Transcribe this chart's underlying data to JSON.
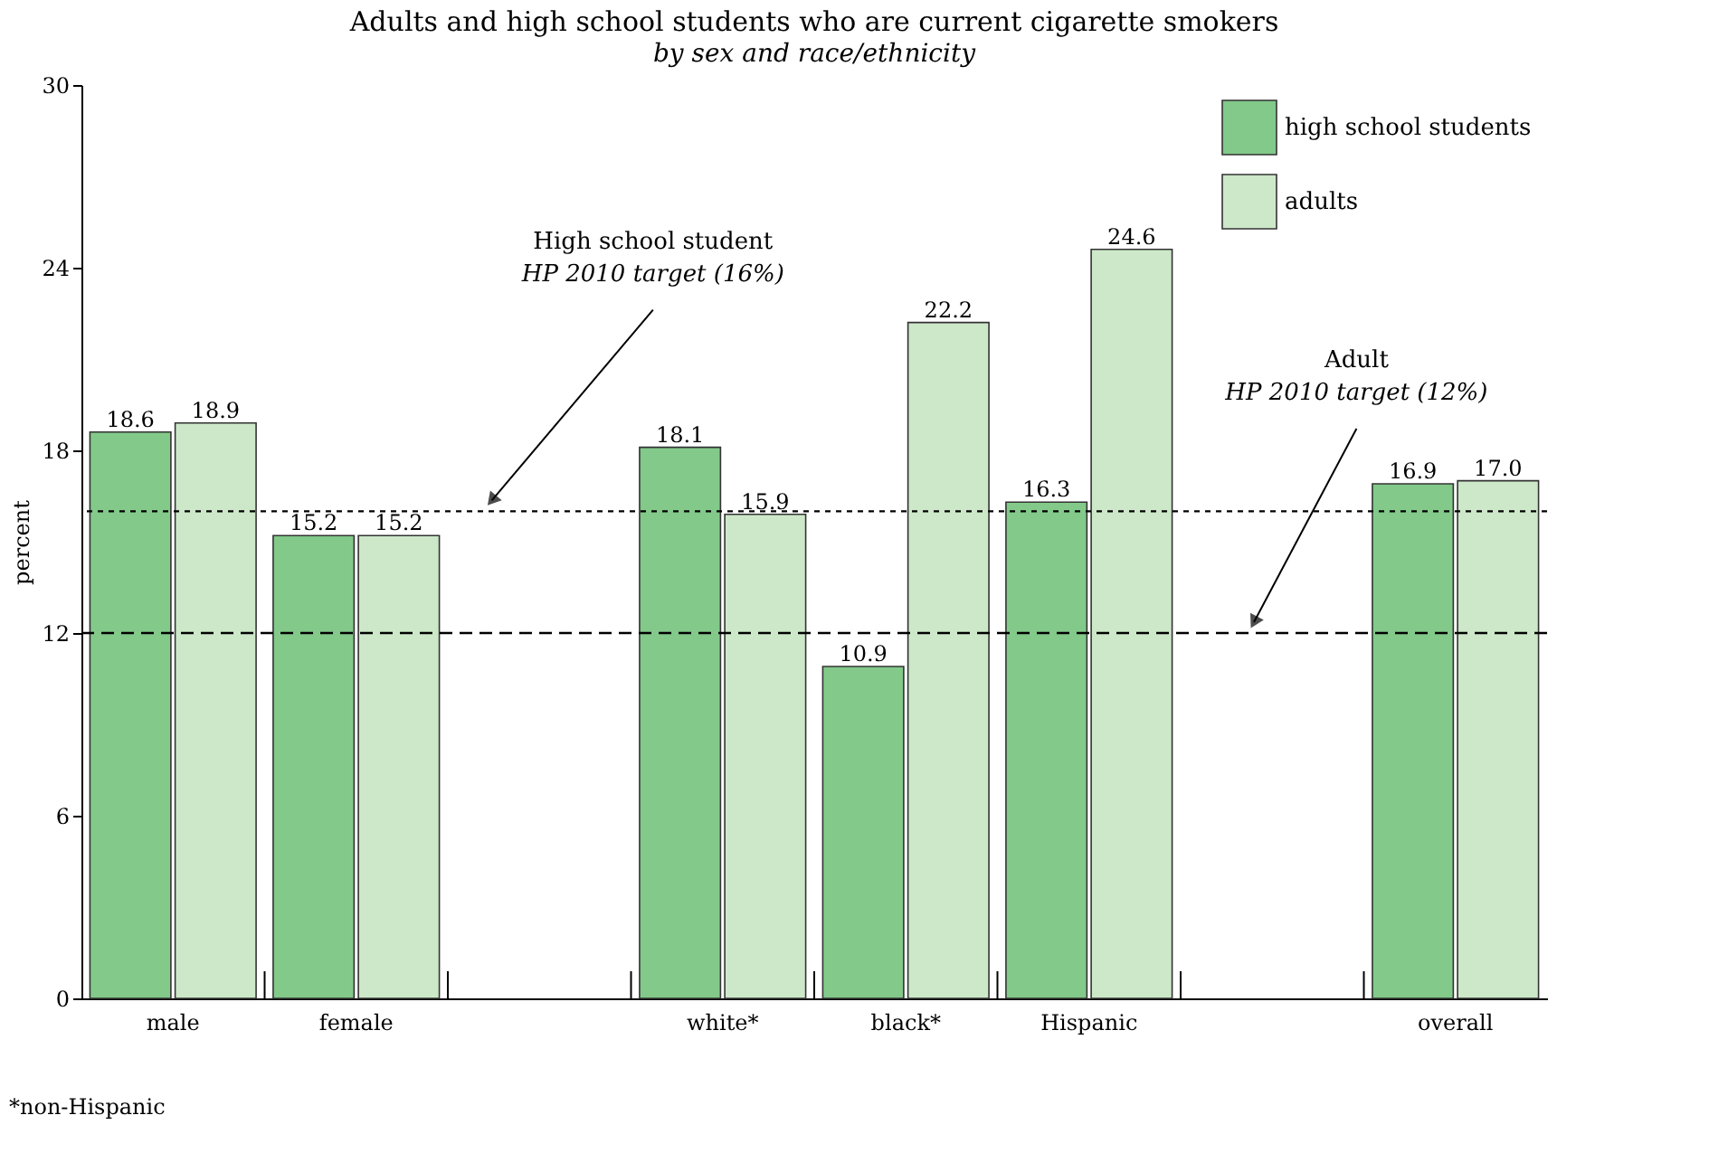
{
  "chart_data": {
    "type": "bar",
    "title": "Adults and high school students who are current cigarette smokers",
    "subtitle": "by sex and race/ethnicity",
    "ylabel": "percent",
    "categories": [
      "male",
      "female",
      null,
      "white*",
      "black*",
      "Hispanic",
      null,
      "overall"
    ],
    "series": [
      {
        "name": "high school students",
        "color": "#82c98a",
        "values": [
          18.6,
          15.2,
          null,
          18.1,
          10.9,
          16.3,
          null,
          16.9
        ],
        "value_labels": [
          "18.6",
          "15.2",
          null,
          "18.1",
          "10.9",
          "16.3",
          null,
          "16.9"
        ]
      },
      {
        "name": "adults",
        "color": "#cde8c9",
        "values": [
          18.9,
          15.2,
          null,
          15.9,
          22.2,
          24.6,
          null,
          17.0
        ],
        "value_labels": [
          "18.9",
          "15.2",
          null,
          "15.9",
          "22.2",
          "24.6",
          null,
          "17.0"
        ]
      }
    ],
    "ylim": [
      0,
      30
    ],
    "yticks": [
      0,
      6,
      12,
      18,
      24,
      30
    ],
    "grid": false,
    "legend": "top right",
    "ref_lines": [
      {
        "axis": "y",
        "value": 16,
        "label": "High school student\nHP 2010 target (16%)",
        "line_style": "dotted",
        "color": "#000000"
      },
      {
        "axis": "y",
        "value": 12,
        "label": "Adult\nHP 2010 target (12%)",
        "line_style": "dashed",
        "color": "#000000"
      }
    ],
    "annotations": [
      "*non-Hispanic"
    ]
  }
}
